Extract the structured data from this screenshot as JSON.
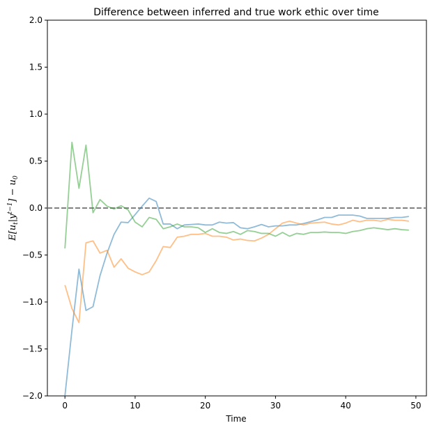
{
  "chart_data": {
    "type": "line",
    "title": "Difference between inferred and true work ethic over time",
    "xlabel": "Time",
    "ylabel": "E[u_t|y^{t-1}] − u_0",
    "xlim": [
      -2.5,
      51.5
    ],
    "ylim": [
      -2.0,
      2.0
    ],
    "xticks": [
      0,
      10,
      20,
      30,
      40,
      50
    ],
    "yticks": [
      -2.0,
      -1.5,
      -1.0,
      -0.5,
      0.0,
      0.5,
      1.0,
      1.5,
      2.0
    ],
    "ytick_labels": [
      "−2.0",
      "−1.5",
      "−1.0",
      "−0.5",
      "0.0",
      "0.5",
      "1.0",
      "1.5",
      "2.0"
    ],
    "grid": false,
    "reference_line": {
      "y": 0.0,
      "style": "dashed",
      "color": "#808080"
    },
    "x": [
      0,
      1,
      2,
      3,
      4,
      5,
      6,
      7,
      8,
      9,
      10,
      11,
      12,
      13,
      14,
      15,
      16,
      17,
      18,
      19,
      20,
      21,
      22,
      23,
      24,
      25,
      26,
      27,
      28,
      29,
      30,
      31,
      32,
      33,
      34,
      35,
      36,
      37,
      38,
      39,
      40,
      41,
      42,
      43,
      44,
      45,
      46,
      47,
      48,
      49
    ],
    "series": [
      {
        "color": "#1f77b4",
        "values": [
          -2.0,
          -1.3,
          -0.65,
          -1.09,
          -1.05,
          -0.72,
          -0.48,
          -0.28,
          -0.15,
          -0.155,
          -0.07,
          0.02,
          0.105,
          0.07,
          -0.17,
          -0.17,
          -0.22,
          -0.18,
          -0.175,
          -0.17,
          -0.18,
          -0.18,
          -0.15,
          -0.16,
          -0.155,
          -0.21,
          -0.22,
          -0.2,
          -0.175,
          -0.2,
          -0.19,
          -0.19,
          -0.18,
          -0.18,
          -0.165,
          -0.145,
          -0.125,
          -0.1,
          -0.1,
          -0.075,
          -0.075,
          -0.075,
          -0.085,
          -0.11,
          -0.11,
          -0.11,
          -0.11,
          -0.1,
          -0.1,
          -0.09
        ]
      },
      {
        "color": "#ff7f0e",
        "values": [
          -0.82,
          -1.07,
          -1.22,
          -0.37,
          -0.35,
          -0.48,
          -0.45,
          -0.63,
          -0.54,
          -0.64,
          -0.68,
          -0.71,
          -0.68,
          -0.56,
          -0.41,
          -0.42,
          -0.31,
          -0.3,
          -0.28,
          -0.28,
          -0.27,
          -0.3,
          -0.3,
          -0.31,
          -0.34,
          -0.33,
          -0.345,
          -0.35,
          -0.32,
          -0.28,
          -0.22,
          -0.16,
          -0.14,
          -0.16,
          -0.18,
          -0.16,
          -0.155,
          -0.15,
          -0.17,
          -0.18,
          -0.16,
          -0.13,
          -0.145,
          -0.13,
          -0.13,
          -0.14,
          -0.12,
          -0.13,
          -0.13,
          -0.14
        ]
      },
      {
        "color": "#2ca02c",
        "values": [
          -0.43,
          0.7,
          0.21,
          0.67,
          -0.05,
          0.09,
          0.02,
          -0.01,
          0.025,
          -0.02,
          -0.15,
          -0.2,
          -0.1,
          -0.12,
          -0.22,
          -0.2,
          -0.17,
          -0.2,
          -0.2,
          -0.21,
          -0.26,
          -0.22,
          -0.26,
          -0.27,
          -0.25,
          -0.28,
          -0.24,
          -0.25,
          -0.27,
          -0.27,
          -0.3,
          -0.26,
          -0.3,
          -0.27,
          -0.28,
          -0.26,
          -0.26,
          -0.255,
          -0.26,
          -0.26,
          -0.27,
          -0.25,
          -0.24,
          -0.22,
          -0.21,
          -0.22,
          -0.23,
          -0.22,
          -0.23,
          -0.235
        ]
      }
    ]
  }
}
